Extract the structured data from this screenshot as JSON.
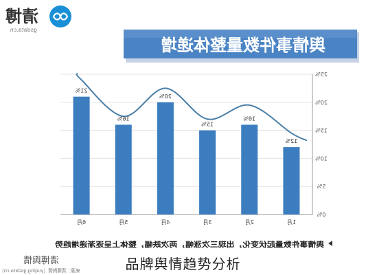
{
  "brand": {
    "name_text": "清博",
    "domain_text": "gsdata.cn",
    "accent_color": "#1a8fd6",
    "icon": "infinity-logo-icon"
  },
  "footer": {
    "watermark_text": "清博舆情",
    "source_text": "来源：清博舆情（yuqing.gsdata.cn）"
  },
  "caption": "品牌舆情趋势分析",
  "chart_data": {
    "type": "bar",
    "mirrored": true,
    "title": "舆情事件数量整体递增",
    "categories": [
      "6月",
      "5月",
      "4月",
      "3月",
      "2月",
      "1月"
    ],
    "values": [
      21,
      16,
      20,
      15,
      16,
      12
    ],
    "value_labels": [
      "21%",
      "16%",
      "20%",
      "15%",
      "16%",
      "12%"
    ],
    "trend_line": {
      "type": "line",
      "color": "#4a7fa8",
      "values": [
        24,
        17.5,
        22.5,
        17,
        19.5,
        14.5
      ]
    },
    "ylim": [
      0,
      25
    ],
    "yticks": [
      0,
      5,
      10,
      15,
      20,
      25
    ],
    "ytick_labels": [
      "0%",
      "5%",
      "10%",
      "15%",
      "20%",
      "25%"
    ],
    "y_axis_side": "right",
    "grid": true,
    "bar_color": "#3c7dbf",
    "title_bar_color": "#4b84c4",
    "note": "舆情事件数量起伏变化，出现三次涨幅，两次跌幅，整体上呈逐渐递增趋势"
  }
}
